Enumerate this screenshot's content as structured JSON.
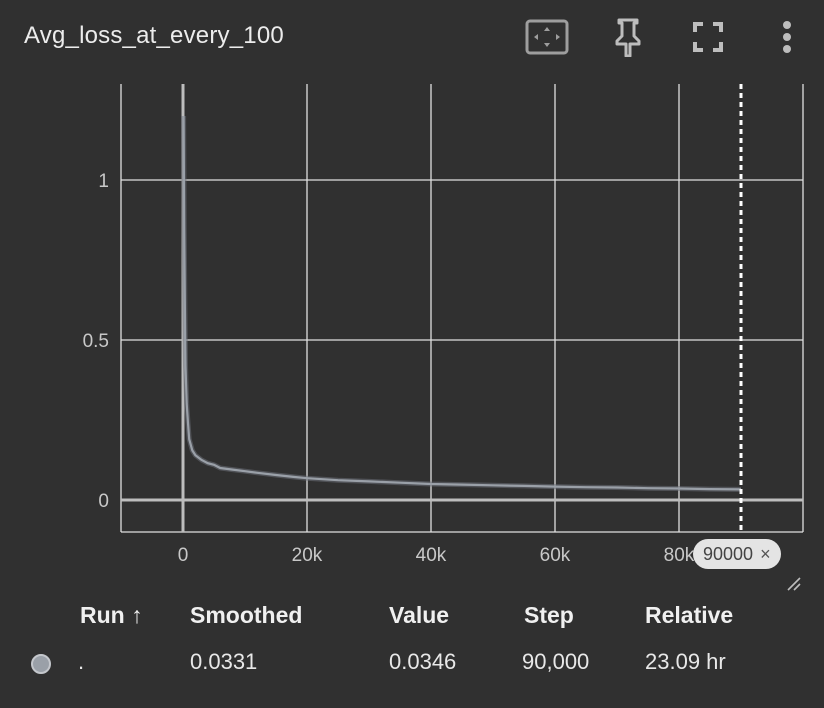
{
  "card": {
    "title": "Avg_loss_at_every_100",
    "tools": [
      "fit-domain-icon",
      "pin-icon",
      "fullscreen-icon",
      "more-vert-icon"
    ]
  },
  "chart_data": {
    "type": "line",
    "title": "Avg_loss_at_every_100",
    "xlabel": "",
    "ylabel": "",
    "xlim": [
      -10000,
      100000
    ],
    "ylim": [
      -0.1,
      1.3
    ],
    "x_ticks": [
      "0",
      "20k",
      "40k",
      "60k",
      "80k"
    ],
    "x_tick_values": [
      0,
      20000,
      40000,
      60000,
      80000
    ],
    "y_ticks": [
      "0",
      "0.5",
      "1"
    ],
    "y_tick_values": [
      0,
      0.5,
      1
    ],
    "grid": true,
    "series": [
      {
        "color": "#9aa0a8",
        "x": [
          100,
          200,
          300,
          400,
          600,
          800,
          1000,
          1500,
          2000,
          3000,
          4000,
          5000,
          6000,
          8000,
          10000,
          12000,
          15000,
          18000,
          20000,
          25000,
          30000,
          35000,
          40000,
          45000,
          50000,
          55000,
          60000,
          65000,
          70000,
          75000,
          80000,
          85000,
          90000
        ],
        "y": [
          1.2,
          0.85,
          0.6,
          0.42,
          0.3,
          0.24,
          0.19,
          0.155,
          0.14,
          0.125,
          0.115,
          0.11,
          0.1,
          0.095,
          0.09,
          0.085,
          0.078,
          0.072,
          0.068,
          0.062,
          0.058,
          0.054,
          0.05,
          0.048,
          0.046,
          0.044,
          0.042,
          0.04,
          0.039,
          0.037,
          0.036,
          0.034,
          0.0331
        ]
      }
    ],
    "cursor_step": 90000
  },
  "cursor": {
    "label": "90000",
    "close_glyph": "×"
  },
  "table": {
    "headers": {
      "run": "Run ↑",
      "smoothed": "Smoothed",
      "value": "Value",
      "step": "Step",
      "relative": "Relative"
    },
    "row": {
      "run": ".",
      "smoothed": "0.0331",
      "value": "0.0346",
      "step": "90,000",
      "relative": "23.09 hr",
      "color": "#9aa0a8"
    }
  }
}
